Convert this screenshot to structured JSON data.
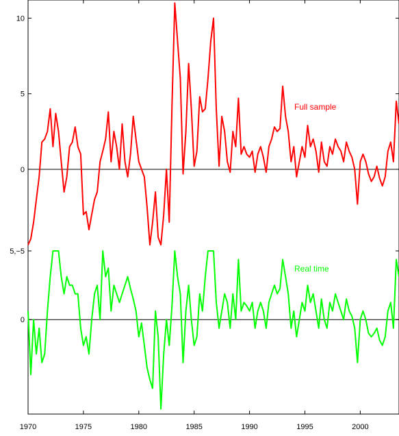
{
  "chart_data": {
    "type": "line",
    "title": "",
    "xlabel": "",
    "ylabel": "",
    "xlim": [
      1970,
      2003.5
    ],
    "x_ticks": [
      "1970",
      "1975",
      "1980",
      "1985",
      "1990",
      "1995",
      "2000"
    ],
    "grid": false,
    "panels": [
      {
        "name": "Full sample",
        "ylim": [
          -5.4,
          11.2
        ],
        "y_ticks": [
          "10",
          "5",
          "0"
        ],
        "bottom_tick_label": "5,−5",
        "zero_line": true,
        "color": "#ff0000",
        "label": "Full sample",
        "x": [
          1970.0,
          1970.25,
          1970.5,
          1970.75,
          1971.0,
          1971.25,
          1971.5,
          1971.75,
          1972.0,
          1972.25,
          1972.5,
          1972.75,
          1973.0,
          1973.25,
          1973.5,
          1973.75,
          1974.0,
          1974.25,
          1974.5,
          1974.75,
          1975.0,
          1975.25,
          1975.5,
          1975.75,
          1976.0,
          1976.25,
          1976.5,
          1976.75,
          1977.0,
          1977.25,
          1977.5,
          1977.75,
          1978.0,
          1978.25,
          1978.5,
          1978.75,
          1979.0,
          1979.25,
          1979.5,
          1979.75,
          1980.0,
          1980.25,
          1980.5,
          1980.75,
          1981.0,
          1981.25,
          1981.5,
          1981.75,
          1982.0,
          1982.25,
          1982.5,
          1982.75,
          1983.0,
          1983.25,
          1983.5,
          1983.75,
          1984.0,
          1984.25,
          1984.5,
          1984.75,
          1985.0,
          1985.25,
          1985.5,
          1985.75,
          1986.0,
          1986.25,
          1986.5,
          1986.75,
          1987.0,
          1987.25,
          1987.5,
          1987.75,
          1988.0,
          1988.25,
          1988.5,
          1988.75,
          1989.0,
          1989.25,
          1989.5,
          1989.75,
          1990.0,
          1990.25,
          1990.5,
          1990.75,
          1991.0,
          1991.25,
          1991.5,
          1991.75,
          1992.0,
          1992.25,
          1992.5,
          1992.75,
          1993.0,
          1993.25,
          1993.5,
          1993.75,
          1994.0,
          1994.25,
          1994.5,
          1994.75,
          1995.0,
          1995.25,
          1995.5,
          1995.75,
          1996.0,
          1996.25,
          1996.5,
          1996.75,
          1997.0,
          1997.25,
          1997.5,
          1997.75,
          1998.0,
          1998.25,
          1998.5,
          1998.75,
          1999.0,
          1999.25,
          1999.5,
          1999.75,
          2000.0,
          2000.25,
          2000.5,
          2000.75,
          2001.0,
          2001.25,
          2001.5,
          2001.75,
          2002.0,
          2002.25,
          2002.5,
          2002.75,
          2003.0,
          2003.25,
          2003.5
        ],
        "y": [
          -5.0,
          -4.6,
          -3.5,
          -2.0,
          -0.5,
          1.8,
          2.0,
          2.5,
          4.0,
          1.5,
          3.7,
          2.5,
          0.5,
          -1.5,
          -0.5,
          1.5,
          1.8,
          2.8,
          1.5,
          1.0,
          -3.0,
          -2.8,
          -4.0,
          -3.0,
          -2.0,
          -1.5,
          0.5,
          1.2,
          2.0,
          3.8,
          0.5,
          2.5,
          1.5,
          0.0,
          3.0,
          0.5,
          -0.5,
          1.0,
          3.5,
          2.0,
          0.5,
          0.0,
          -0.5,
          -2.5,
          -5.0,
          -3.5,
          -1.5,
          -4.5,
          -5.0,
          -3.0,
          0.0,
          -3.5,
          4.2,
          11.0,
          8.5,
          6.0,
          -0.3,
          2.5,
          7.0,
          4.0,
          0.2,
          1.2,
          4.8,
          3.8,
          4.0,
          6.0,
          8.5,
          10.0,
          4.0,
          0.2,
          3.5,
          2.5,
          0.5,
          -0.2,
          2.5,
          1.5,
          4.7,
          1.0,
          1.5,
          1.0,
          0.8,
          1.2,
          -0.2,
          1.0,
          1.5,
          0.8,
          -0.2,
          1.5,
          2.0,
          2.8,
          2.5,
          2.7,
          5.5,
          3.5,
          2.5,
          0.5,
          1.5,
          -0.5,
          0.5,
          1.5,
          0.8,
          2.9,
          1.5,
          2.0,
          1.2,
          -0.2,
          1.8,
          0.5,
          0.2,
          1.5,
          1.0,
          2.0,
          1.5,
          1.2,
          0.5,
          1.8,
          1.2,
          0.8,
          0.0,
          -2.3,
          0.5,
          1.0,
          0.5,
          -0.3,
          -0.8,
          -0.5,
          0.2,
          -0.6,
          -1.1,
          -0.5,
          1.2,
          1.8,
          0.5,
          4.5,
          3.0
        ]
      },
      {
        "name": "Real time",
        "ylim": [
          -5.5,
          4.0
        ],
        "y_ticks": [
          "0"
        ],
        "zero_line": true,
        "color": "#00ff00",
        "label": "Real time",
        "x": [
          1970.0,
          1970.25,
          1970.5,
          1970.75,
          1971.0,
          1971.25,
          1971.5,
          1971.75,
          1972.0,
          1972.25,
          1972.5,
          1972.75,
          1973.0,
          1973.25,
          1973.5,
          1973.75,
          1974.0,
          1974.25,
          1974.5,
          1974.75,
          1975.0,
          1975.25,
          1975.5,
          1975.75,
          1976.0,
          1976.25,
          1976.5,
          1976.75,
          1977.0,
          1977.25,
          1977.5,
          1977.75,
          1978.0,
          1978.25,
          1978.5,
          1978.75,
          1979.0,
          1979.25,
          1979.5,
          1979.75,
          1980.0,
          1980.25,
          1980.5,
          1980.75,
          1981.0,
          1981.25,
          1981.5,
          1981.75,
          1982.0,
          1982.25,
          1982.5,
          1982.75,
          1983.0,
          1983.25,
          1983.5,
          1983.75,
          1984.0,
          1984.25,
          1984.5,
          1984.75,
          1985.0,
          1985.25,
          1985.5,
          1985.75,
          1986.0,
          1986.25,
          1986.5,
          1986.75,
          1987.0,
          1987.25,
          1987.5,
          1987.75,
          1988.0,
          1988.25,
          1988.5,
          1988.75,
          1989.0,
          1989.25,
          1989.5,
          1989.75,
          1990.0,
          1990.25,
          1990.5,
          1990.75,
          1991.0,
          1991.25,
          1991.5,
          1991.75,
          1992.0,
          1992.25,
          1992.5,
          1992.75,
          1993.0,
          1993.25,
          1993.5,
          1993.75,
          1994.0,
          1994.25,
          1994.5,
          1994.75,
          1995.0,
          1995.25,
          1995.5,
          1995.75,
          1996.0,
          1996.25,
          1996.5,
          1996.75,
          1997.0,
          1997.25,
          1997.5,
          1997.75,
          1998.0,
          1998.25,
          1998.5,
          1998.75,
          1999.0,
          1999.25,
          1999.5,
          1999.75,
          2000.0,
          2000.25,
          2000.5,
          2000.75,
          2001.0,
          2001.25,
          2001.5,
          2001.75,
          2002.0,
          2002.25,
          2002.5,
          2002.75,
          2003.0,
          2003.25,
          2003.5
        ],
        "y": [
          0.5,
          -3.2,
          0.0,
          -2.0,
          -0.5,
          -2.5,
          -2.0,
          0.5,
          2.5,
          6.5,
          4.5,
          4.0,
          2.5,
          1.5,
          2.5,
          2.0,
          2.0,
          1.5,
          1.5,
          -0.5,
          -1.5,
          -1.0,
          -2.0,
          0.0,
          1.5,
          2.0,
          0.0,
          4.0,
          2.5,
          3.0,
          0.5,
          2.0,
          1.5,
          1.0,
          1.5,
          2.0,
          2.5,
          1.8,
          1.2,
          0.5,
          -1.0,
          -0.2,
          -1.5,
          -2.8,
          -3.5,
          -4.0,
          0.5,
          -1.0,
          -5.2,
          -2.0,
          0.0,
          -1.5,
          0.8,
          5.0,
          2.5,
          1.5,
          -2.5,
          0.5,
          2.0,
          0.0,
          -1.5,
          -1.0,
          1.5,
          0.5,
          2.5,
          5.0,
          6.5,
          4.0,
          1.0,
          -0.5,
          0.5,
          1.5,
          1.0,
          -0.5,
          1.5,
          0.0,
          3.5,
          0.5,
          1.0,
          0.8,
          0.5,
          1.0,
          -0.5,
          0.5,
          1.0,
          0.5,
          -0.5,
          1.0,
          1.5,
          2.0,
          1.5,
          1.8,
          3.5,
          2.5,
          1.5,
          -0.5,
          0.5,
          -1.0,
          0.0,
          1.0,
          0.5,
          2.0,
          1.0,
          1.5,
          0.5,
          -0.5,
          1.2,
          0.0,
          -0.5,
          1.0,
          0.5,
          1.5,
          1.0,
          0.5,
          0.0,
          1.2,
          0.5,
          0.2,
          -0.5,
          -2.5,
          0.0,
          0.5,
          0.0,
          -0.8,
          -1.0,
          -0.8,
          -0.5,
          -1.2,
          -1.5,
          -1.0,
          0.5,
          1.0,
          -0.5,
          3.5,
          2.5
        ]
      }
    ]
  }
}
